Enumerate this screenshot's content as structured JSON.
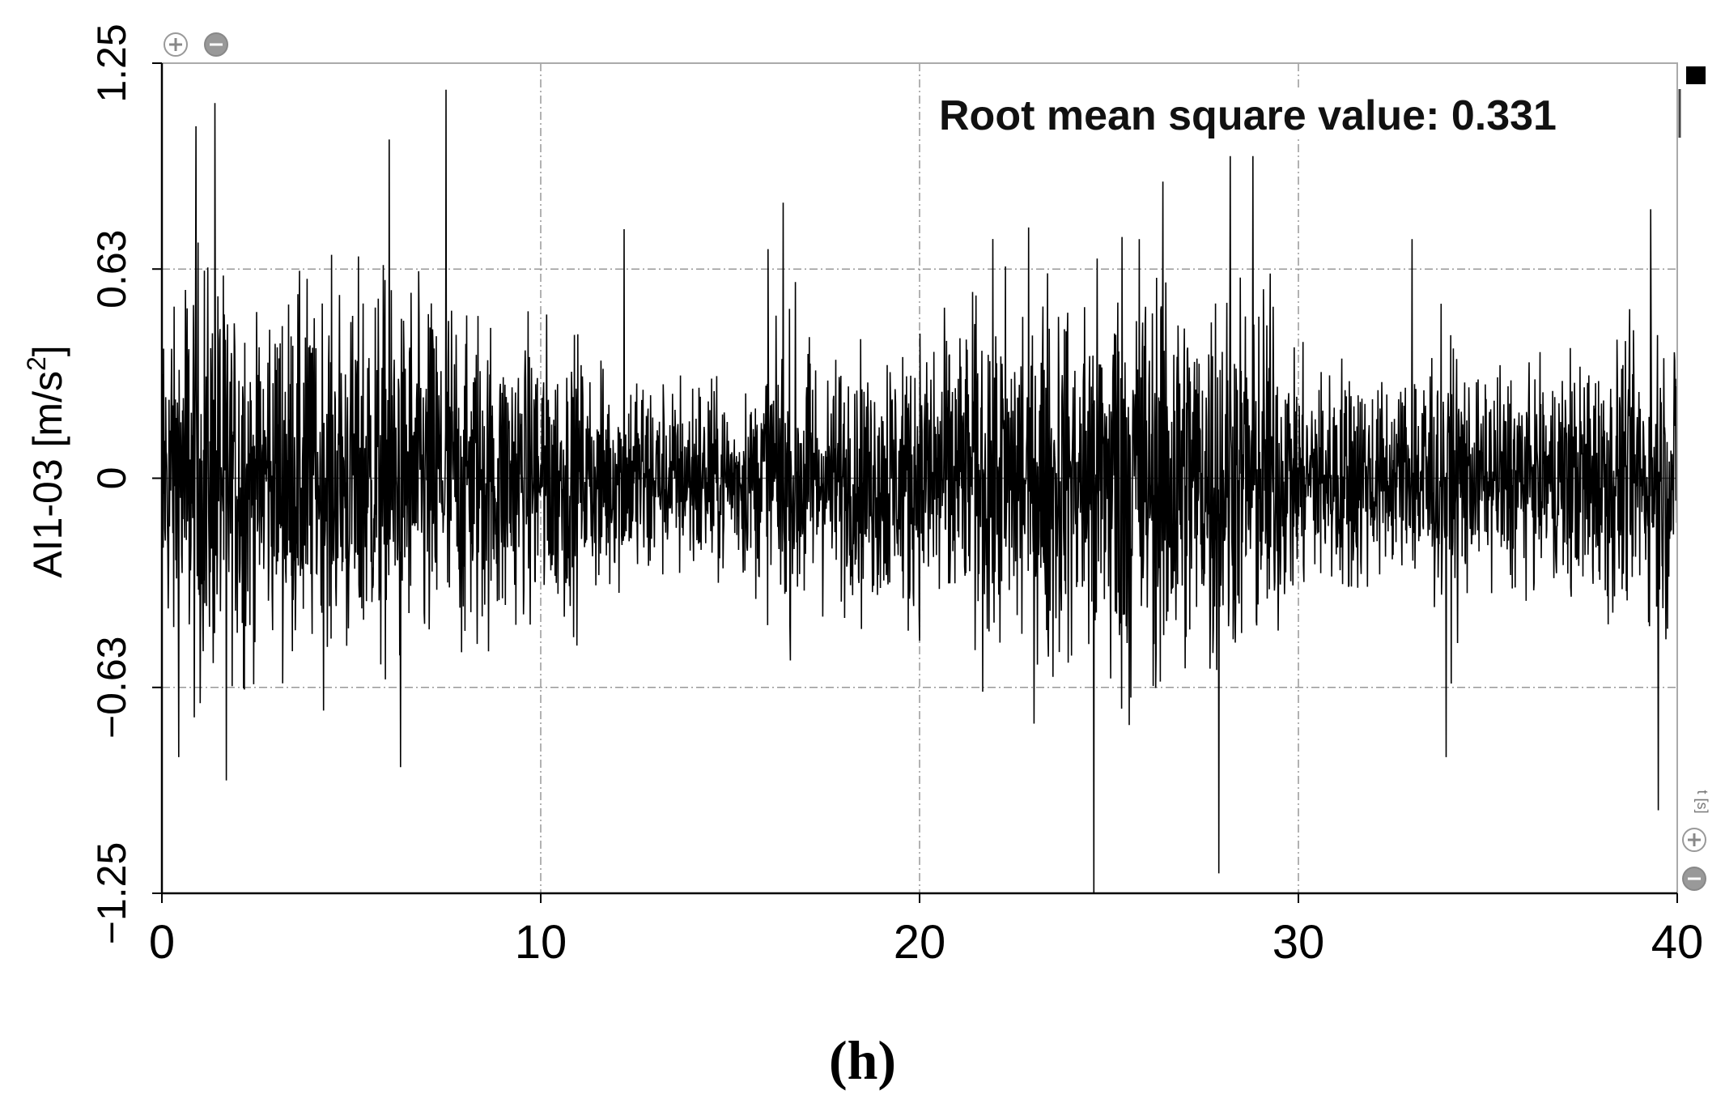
{
  "chart_data": {
    "type": "line",
    "title": "",
    "xlabel": "",
    "ylabel_main": "AI1-03 [m/s",
    "ylabel_sup": "2",
    "ylabel_end": "]",
    "x_unit_label": "t [s]",
    "xlim": [
      0,
      40
    ],
    "ylim": [
      -1.25,
      1.25
    ],
    "x_ticks": [
      0,
      10,
      20,
      30,
      40
    ],
    "x_tick_labels": [
      "0",
      "10",
      "20",
      "30",
      "40"
    ],
    "y_ticks": [
      -1.25,
      -0.63,
      0,
      0.63,
      1.25
    ],
    "y_tick_labels": [
      "−1.25",
      "−0.63",
      "0",
      "0.63",
      "1.25"
    ],
    "grid": true,
    "annotation": "Root mean square value: 0.331",
    "series": [
      {
        "color": "#000000",
        "peaks": [
          {
            "x": 0.9,
            "y": 1.06
          },
          {
            "x": 1.4,
            "y": 1.13
          },
          {
            "x": 1.7,
            "y": -0.91
          },
          {
            "x": 6.0,
            "y": 1.02
          },
          {
            "x": 6.3,
            "y": -0.87
          },
          {
            "x": 7.5,
            "y": 1.17
          },
          {
            "x": 12.2,
            "y": 0.75
          },
          {
            "x": 16.0,
            "y": 0.69
          },
          {
            "x": 16.4,
            "y": 0.83
          },
          {
            "x": 24.6,
            "y": -1.25
          },
          {
            "x": 25.8,
            "y": 0.72
          },
          {
            "x": 27.9,
            "y": -1.19
          },
          {
            "x": 28.2,
            "y": 0.97
          },
          {
            "x": 28.8,
            "y": 0.97
          },
          {
            "x": 33.0,
            "y": 0.72
          },
          {
            "x": 33.9,
            "y": -0.84
          },
          {
            "x": 39.3,
            "y": 0.81
          },
          {
            "x": 39.5,
            "y": -1.0
          }
        ]
      }
    ]
  },
  "caption": "(h)"
}
